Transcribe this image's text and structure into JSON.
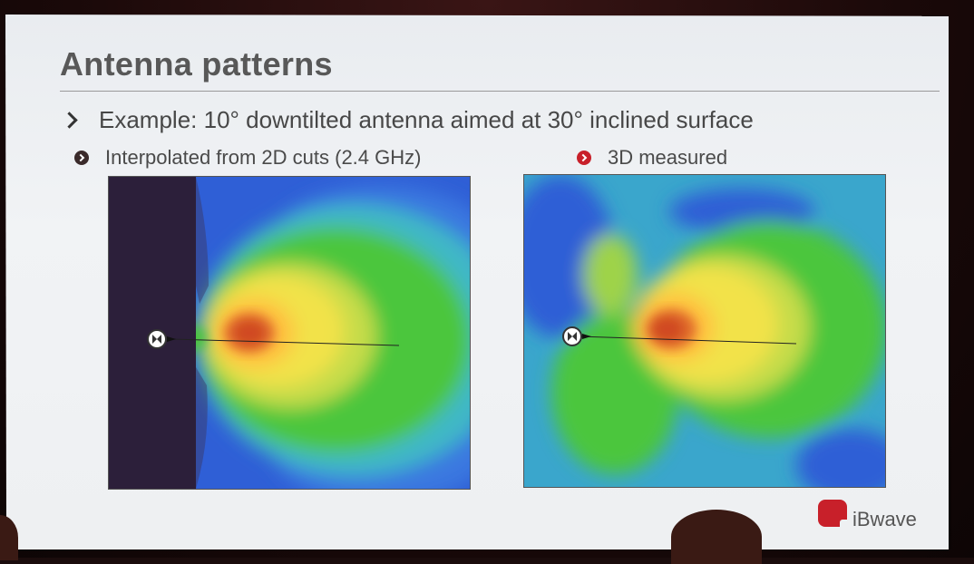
{
  "slide": {
    "title": "Antenna patterns",
    "bullet": "Example: 10° downtilted antenna aimed at 30° inclined surface",
    "left_caption": "Interpolated from 2D cuts (2.4 GHz)",
    "right_caption": "3D measured",
    "logo_text": "iBwave"
  },
  "colors": {
    "accent_red": "#c8202a",
    "heat_dark": "#2c1f3a",
    "heat_blue": "#2f5fd6",
    "heat_cyan": "#3fb8c6",
    "heat_green": "#4cc63c",
    "heat_yellow": "#f2e24a",
    "heat_orange": "#ff9a3a",
    "heat_red": "#d84a22"
  }
}
